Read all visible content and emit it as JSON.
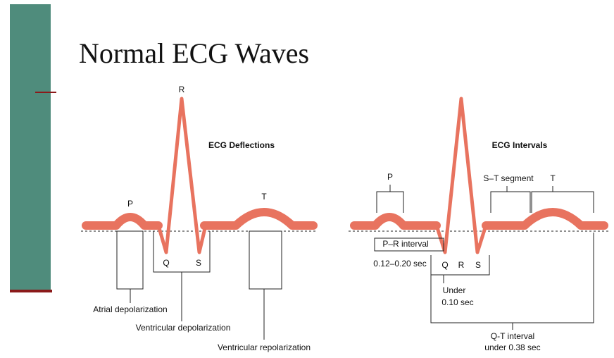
{
  "title": "Normal ECG Waves",
  "deflections": {
    "heading": "ECG Deflections",
    "labels": {
      "r": "R",
      "p": "P",
      "t": "T",
      "q": "Q",
      "s": "S"
    },
    "annotations": [
      "Atrial depolarization",
      "Ventricular depolarization",
      "Ventricular repolarization"
    ]
  },
  "intervals": {
    "heading": "ECG Intervals",
    "labels": {
      "p": "P",
      "st": "S–T segment",
      "t": "T",
      "q": "Q",
      "r": "R",
      "s": "S"
    },
    "pr": [
      "P–R interval",
      "0.12–0.20 sec"
    ],
    "qrs": [
      "Under",
      "0.10 sec"
    ],
    "qt": [
      "Q-T interval",
      "under 0.38 sec"
    ]
  }
}
